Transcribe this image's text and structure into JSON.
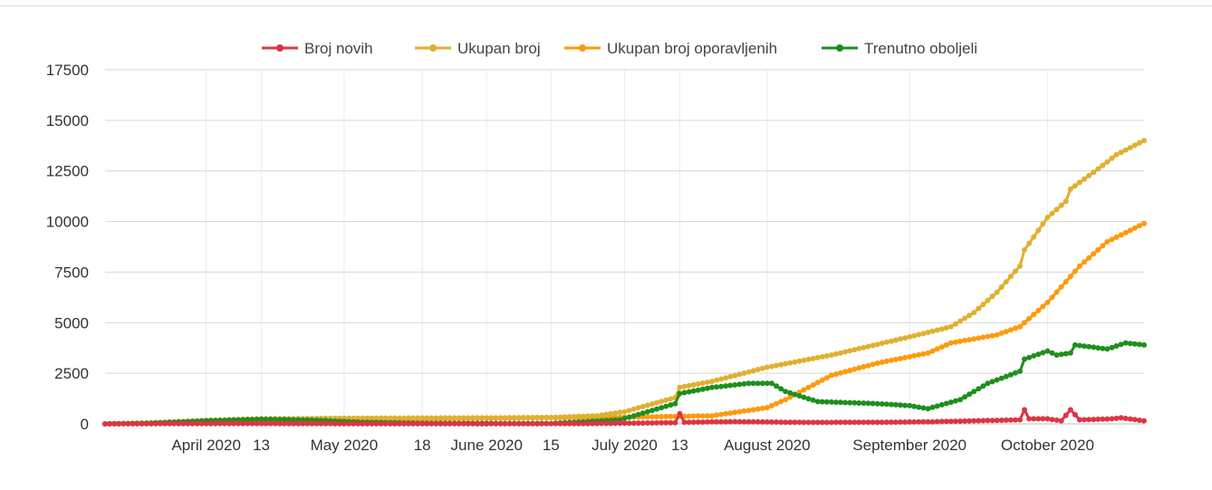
{
  "chart_data": {
    "type": "line",
    "title": "",
    "xlabel": "",
    "ylabel": "",
    "ylim": [
      0,
      17500
    ],
    "xlim": [
      "2020-03-10",
      "2020-10-22"
    ],
    "grid": true,
    "legend_position": "top",
    "yticks": [
      0,
      2500,
      5000,
      7500,
      10000,
      12500,
      15000,
      17500
    ],
    "ytick_labels": [
      "0",
      "2500",
      "5000",
      "7500",
      "10000",
      "12500",
      "15000",
      "17500"
    ],
    "xticks": [
      {
        "date": "2020-04-01",
        "label": "April 2020"
      },
      {
        "date": "2020-04-13",
        "label": "13"
      },
      {
        "date": "2020-05-01",
        "label": "May 2020"
      },
      {
        "date": "2020-05-18",
        "label": "18"
      },
      {
        "date": "2020-06-01",
        "label": "June 2020"
      },
      {
        "date": "2020-06-15",
        "label": "15"
      },
      {
        "date": "2020-07-01",
        "label": "July 2020"
      },
      {
        "date": "2020-07-13",
        "label": "13"
      },
      {
        "date": "2020-08-01",
        "label": "August 2020"
      },
      {
        "date": "2020-09-01",
        "label": "September 2020"
      },
      {
        "date": "2020-10-01",
        "label": "October 2020"
      }
    ],
    "series": [
      {
        "name": "Broj novih",
        "color": "#dc3545",
        "points": [
          [
            "2020-03-10",
            0
          ],
          [
            "2020-03-25",
            10
          ],
          [
            "2020-04-10",
            20
          ],
          [
            "2020-05-01",
            5
          ],
          [
            "2020-06-01",
            2
          ],
          [
            "2020-06-20",
            10
          ],
          [
            "2020-07-01",
            30
          ],
          [
            "2020-07-12",
            60
          ],
          [
            "2020-07-13",
            500
          ],
          [
            "2020-07-14",
            80
          ],
          [
            "2020-07-25",
            110
          ],
          [
            "2020-08-10",
            70
          ],
          [
            "2020-08-25",
            80
          ],
          [
            "2020-09-05",
            100
          ],
          [
            "2020-09-15",
            150
          ],
          [
            "2020-09-25",
            200
          ],
          [
            "2020-09-26",
            700
          ],
          [
            "2020-09-27",
            250
          ],
          [
            "2020-10-01",
            250
          ],
          [
            "2020-10-04",
            150
          ],
          [
            "2020-10-06",
            700
          ],
          [
            "2020-10-08",
            200
          ],
          [
            "2020-10-15",
            250
          ],
          [
            "2020-10-17",
            300
          ],
          [
            "2020-10-22",
            150
          ]
        ]
      },
      {
        "name": "Ukupan broj",
        "color": "#e0b030",
        "points": [
          [
            "2020-03-10",
            0
          ],
          [
            "2020-03-20",
            50
          ],
          [
            "2020-04-01",
            180
          ],
          [
            "2020-04-13",
            250
          ],
          [
            "2020-05-01",
            280
          ],
          [
            "2020-06-01",
            300
          ],
          [
            "2020-06-15",
            320
          ],
          [
            "2020-06-25",
            400
          ],
          [
            "2020-07-01",
            600
          ],
          [
            "2020-07-12",
            1300
          ],
          [
            "2020-07-13",
            1800
          ],
          [
            "2020-07-20",
            2100
          ],
          [
            "2020-08-01",
            2800
          ],
          [
            "2020-08-15",
            3400
          ],
          [
            "2020-09-01",
            4300
          ],
          [
            "2020-09-10",
            4800
          ],
          [
            "2020-09-15",
            5500
          ],
          [
            "2020-09-20",
            6500
          ],
          [
            "2020-09-25",
            7800
          ],
          [
            "2020-09-26",
            8600
          ],
          [
            "2020-10-01",
            10200
          ],
          [
            "2020-10-05",
            11000
          ],
          [
            "2020-10-06",
            11600
          ],
          [
            "2020-10-12",
            12600
          ],
          [
            "2020-10-16",
            13300
          ],
          [
            "2020-10-22",
            14000
          ]
        ]
      },
      {
        "name": "Ukupan broj oporavljenih",
        "color": "#fd9a0e",
        "points": [
          [
            "2020-03-10",
            0
          ],
          [
            "2020-03-25",
            20
          ],
          [
            "2020-04-13",
            100
          ],
          [
            "2020-05-01",
            200
          ],
          [
            "2020-06-01",
            280
          ],
          [
            "2020-07-01",
            330
          ],
          [
            "2020-07-20",
            400
          ],
          [
            "2020-08-01",
            800
          ],
          [
            "2020-08-05",
            1200
          ],
          [
            "2020-08-15",
            2400
          ],
          [
            "2020-08-25",
            3000
          ],
          [
            "2020-09-05",
            3500
          ],
          [
            "2020-09-10",
            4000
          ],
          [
            "2020-09-20",
            4400
          ],
          [
            "2020-09-25",
            4800
          ],
          [
            "2020-10-01",
            6000
          ],
          [
            "2020-10-08",
            7800
          ],
          [
            "2020-10-14",
            9000
          ],
          [
            "2020-10-22",
            9900
          ]
        ]
      },
      {
        "name": "Trenutno oboljeli",
        "color": "#1e8f1e",
        "points": [
          [
            "2020-03-10",
            0
          ],
          [
            "2020-03-20",
            40
          ],
          [
            "2020-04-01",
            150
          ],
          [
            "2020-04-13",
            230
          ],
          [
            "2020-04-25",
            180
          ],
          [
            "2020-05-05",
            80
          ],
          [
            "2020-05-20",
            30
          ],
          [
            "2020-06-15",
            20
          ],
          [
            "2020-06-30",
            200
          ],
          [
            "2020-07-12",
            1000
          ],
          [
            "2020-07-13",
            1500
          ],
          [
            "2020-07-20",
            1800
          ],
          [
            "2020-07-28",
            2000
          ],
          [
            "2020-08-02",
            2000
          ],
          [
            "2020-08-05",
            1600
          ],
          [
            "2020-08-12",
            1100
          ],
          [
            "2020-08-25",
            1000
          ],
          [
            "2020-09-01",
            900
          ],
          [
            "2020-09-05",
            750
          ],
          [
            "2020-09-12",
            1200
          ],
          [
            "2020-09-18",
            2000
          ],
          [
            "2020-09-25",
            2600
          ],
          [
            "2020-09-26",
            3200
          ],
          [
            "2020-10-01",
            3600
          ],
          [
            "2020-10-03",
            3400
          ],
          [
            "2020-10-06",
            3500
          ],
          [
            "2020-10-07",
            3900
          ],
          [
            "2020-10-14",
            3700
          ],
          [
            "2020-10-18",
            4000
          ],
          [
            "2020-10-22",
            3900
          ]
        ]
      }
    ]
  }
}
